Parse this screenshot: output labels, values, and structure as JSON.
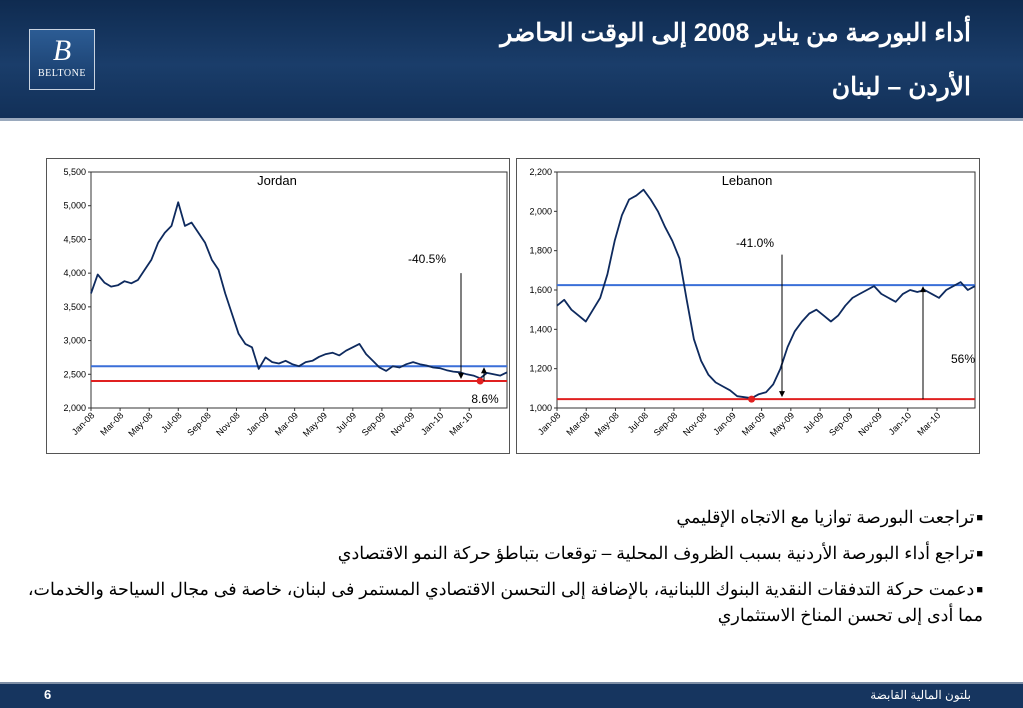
{
  "header": {
    "title_line1": "أداء البورصة من يناير 2008 إلى الوقت الحاضر",
    "title_line2": "الأردن – لبنان",
    "logo_mark": "B",
    "logo_text": "BELTONE"
  },
  "chart_data": [
    {
      "type": "line",
      "title": "Jordan",
      "yticks": [
        "2,000",
        "2,500",
        "3,000",
        "3,500",
        "4,000",
        "4,500",
        "5,000",
        "5,500"
      ],
      "ylim": [
        2000,
        5500
      ],
      "xticks": [
        "Jan-08",
        "Mar-08",
        "May-08",
        "Jul-08",
        "Sep-08",
        "Nov-08",
        "Jan-09",
        "Mar-09",
        "May-09",
        "Jul-09",
        "Sep-09",
        "Nov-09",
        "Jan-10",
        "Mar-10"
      ],
      "series": [
        {
          "values": [
            3700,
            3980,
            3860,
            3800,
            3820,
            3880,
            3850,
            3900,
            4050,
            4200,
            4450,
            4600,
            4700,
            5050,
            4700,
            4750,
            4600,
            4450,
            4200,
            4050,
            3700,
            3400,
            3100,
            2950,
            2900,
            2580,
            2750,
            2680,
            2660,
            2700,
            2650,
            2620,
            2680,
            2700,
            2760,
            2800,
            2820,
            2780,
            2850,
            2900,
            2950,
            2800,
            2700,
            2600,
            2550,
            2620,
            2600,
            2650,
            2680,
            2650,
            2630,
            2600,
            2590,
            2560,
            2540,
            2530,
            2500,
            2480,
            2440,
            2520,
            2500,
            2480,
            2530
          ]
        }
      ],
      "reference_lines": [
        {
          "value": 2620,
          "color": "#3a6fd8"
        },
        {
          "value": 2400,
          "color": "#e02020"
        }
      ],
      "annotations": [
        "-40.5%",
        "8.6%"
      ],
      "colors": {
        "series": "#0e2a5e"
      }
    },
    {
      "type": "line",
      "title": "Lebanon",
      "yticks": [
        "1,000",
        "1,200",
        "1,400",
        "1,600",
        "1,800",
        "2,000",
        "2,200"
      ],
      "ylim": [
        1000,
        2200
      ],
      "xticks": [
        "Jan-08",
        "Mar-08",
        "May-08",
        "Jul-08",
        "Sep-08",
        "Nov-08",
        "Jan-09",
        "Mar-09",
        "May-09",
        "Jul-09",
        "Sep-09",
        "Nov-09",
        "Jan-10",
        "Mar-10"
      ],
      "series": [
        {
          "values": [
            1520,
            1550,
            1500,
            1470,
            1440,
            1500,
            1560,
            1680,
            1850,
            1980,
            2060,
            2080,
            2110,
            2060,
            2000,
            1920,
            1850,
            1760,
            1550,
            1350,
            1240,
            1170,
            1130,
            1110,
            1090,
            1060,
            1055,
            1050,
            1070,
            1080,
            1120,
            1200,
            1310,
            1390,
            1440,
            1480,
            1500,
            1470,
            1440,
            1470,
            1520,
            1560,
            1580,
            1600,
            1620,
            1580,
            1560,
            1540,
            1580,
            1600,
            1590,
            1600,
            1580,
            1560,
            1600,
            1620,
            1640,
            1600,
            1620
          ]
        }
      ],
      "reference_lines": [
        {
          "value": 1625,
          "color": "#3a6fd8"
        },
        {
          "value": 1045,
          "color": "#e02020"
        }
      ],
      "annotations": [
        "-41.0%",
        "56%"
      ],
      "colors": {
        "series": "#0e2a5e"
      }
    }
  ],
  "bullets": [
    {
      "mark": "■",
      "text": "تراجعت البورصة توازيا مع الاتجاه الإقليمي"
    },
    {
      "mark": "■",
      "text": "تراجع أداء البورصة الأردنية بسبب الظروف المحلية – توقعات بتباطؤ حركة النمو الاقتصادي"
    },
    {
      "mark": "■",
      "text": "دعمت حركة التدفقات النقدية البنوك اللبنانية، بالإضافة إلى التحسن الاقتصادي المستمر فى لبنان، خاصة فى مجال السياحة والخدمات، مما أدى إلى تحسن المناخ الاستثماري"
    }
  ],
  "footer": {
    "page_number": "6",
    "company": "بلتون المالية القابضة"
  }
}
